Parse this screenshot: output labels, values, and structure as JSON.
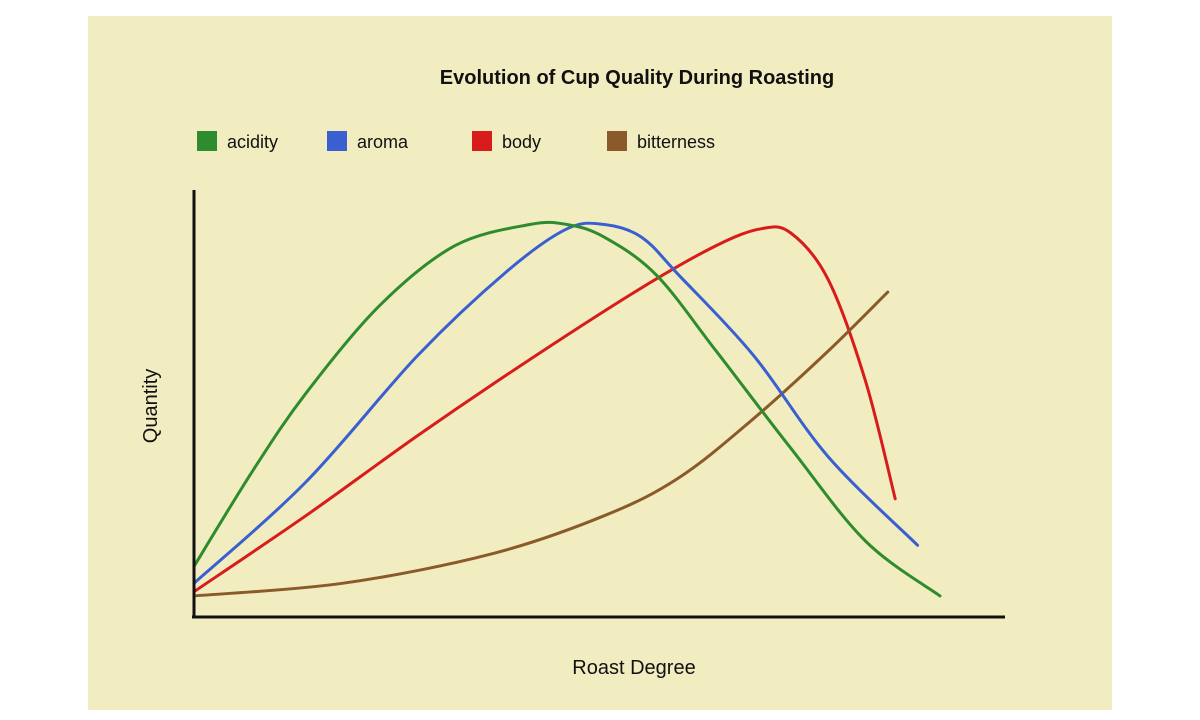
{
  "chart_data": {
    "type": "line",
    "title": "Evolution of Cup Quality During Roasting",
    "xlabel": "Roast Degree",
    "ylabel": "Quantity",
    "xlim": [
      0,
      100
    ],
    "ylim": [
      0,
      100
    ],
    "grid": false,
    "legend_position": "top",
    "series": [
      {
        "name": "acidity",
        "color": "#2e8b2e",
        "x": [
          0,
          8,
          15,
          25,
          35,
          45,
          50,
          55,
          62,
          70,
          80,
          90,
          100
        ],
        "y": [
          12,
          35,
          53,
          74,
          88,
          93,
          93,
          90,
          81,
          63,
          40,
          18,
          5
        ]
      },
      {
        "name": "aroma",
        "color": "#3a5fd0",
        "x": [
          0,
          15,
          30,
          42,
          50,
          55,
          60,
          65,
          75,
          85,
          97
        ],
        "y": [
          8,
          32,
          62,
          82,
          92,
          93,
          90,
          81,
          62,
          38,
          17
        ]
      },
      {
        "name": "body",
        "color": "#d81c1c",
        "x": [
          0,
          15,
          30,
          45,
          60,
          70,
          76,
          80,
          85,
          90,
          94
        ],
        "y": [
          6,
          24,
          43,
          61,
          78,
          88,
          92,
          91,
          80,
          56,
          28
        ]
      },
      {
        "name": "bitterness",
        "color": "#8b5a2b",
        "x": [
          0,
          20,
          40,
          55,
          65,
          75,
          85,
          93
        ],
        "y": [
          5,
          8,
          15,
          24,
          33,
          47,
          63,
          77
        ]
      }
    ]
  }
}
